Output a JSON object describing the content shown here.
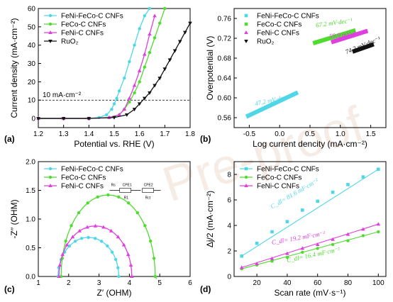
{
  "colors": {
    "cyan": "#4fd7e8",
    "green": "#4fdc2f",
    "magenta": "#df3fdc",
    "black": "#111111"
  },
  "watermark": "Pre-proof",
  "chart_data": [
    {
      "panel": "(a)",
      "type": "line",
      "xlabel": "Potential vs. RHE (V)",
      "ylabel": "Current density (mA·cm⁻²)",
      "xlim": [
        1.2,
        1.8
      ],
      "ylim": [
        -5,
        60
      ],
      "xticks": [
        "1.2",
        "1.3",
        "1.4",
        "1.5",
        "1.6",
        "1.7",
        "1.8"
      ],
      "yticks": [
        "0",
        "10",
        "20",
        "30",
        "40",
        "50",
        "60"
      ],
      "legend_position": "top-left",
      "annotations": [
        {
          "text": "10 mA·cm⁻²",
          "y": 10
        }
      ],
      "series": [
        {
          "name": "FeNi-FeCo-C CNFs",
          "color": "cyan",
          "marker": "circle",
          "x": [
            1.2,
            1.3,
            1.4,
            1.44,
            1.47,
            1.49,
            1.5,
            1.51,
            1.52,
            1.54,
            1.56,
            1.58,
            1.6,
            1.62,
            1.64
          ],
          "y": [
            0,
            0,
            0,
            0.5,
            2,
            5,
            8,
            11,
            15,
            22,
            31,
            40,
            49,
            56,
            60
          ]
        },
        {
          "name": "FeCo-C CNFs",
          "color": "green",
          "marker": "circle",
          "x": [
            1.2,
            1.3,
            1.4,
            1.48,
            1.52,
            1.54,
            1.56,
            1.58,
            1.6,
            1.62,
            1.64,
            1.66,
            1.68,
            1.7
          ],
          "y": [
            0,
            0,
            0,
            0.5,
            2,
            5,
            9,
            14,
            20,
            28,
            36,
            44,
            52,
            60
          ]
        },
        {
          "name": "FeNi-C CNFs",
          "color": "magenta",
          "marker": "triangle",
          "x": [
            1.2,
            1.3,
            1.4,
            1.48,
            1.52,
            1.54,
            1.56,
            1.58,
            1.6,
            1.62,
            1.64,
            1.66
          ],
          "y": [
            0,
            0,
            0,
            0.5,
            2,
            5,
            11,
            18,
            26,
            35,
            46,
            56
          ]
        },
        {
          "name": "RuO₂",
          "color": "black",
          "marker": "triangle-down",
          "x": [
            1.2,
            1.3,
            1.4,
            1.5,
            1.55,
            1.58,
            1.6,
            1.62,
            1.64,
            1.66,
            1.68,
            1.7,
            1.72,
            1.74,
            1.76,
            1.78,
            1.8
          ],
          "y": [
            0,
            0,
            0,
            0.5,
            2,
            5,
            8,
            11,
            14,
            18,
            22,
            27,
            32,
            37,
            42,
            47,
            52
          ]
        }
      ]
    },
    {
      "panel": "(b)",
      "type": "line",
      "xlabel": "Log current dencity (mA·cm⁻²)",
      "ylabel": "Overpotential (V)",
      "xlim": [
        -0.75,
        1.75
      ],
      "ylim": [
        0.54,
        0.78
      ],
      "xticks": [
        "-0.5",
        "0.0",
        "0.5",
        "1.0",
        "1.5"
      ],
      "yticks": [
        "0.56",
        "0.60",
        "0.64",
        "0.68",
        "0.72",
        "0.76"
      ],
      "legend_position": "top-left",
      "series": [
        {
          "name": "FeNi-FeCo-C CNFs",
          "color": "cyan",
          "slope_label": "47.2 mV·dec⁻¹",
          "x": [
            -0.55,
            0.3
          ],
          "y": [
            0.562,
            0.611
          ]
        },
        {
          "name": "FeCo-C CNFs",
          "color": "green",
          "slope_label": "67.2 mV·dec⁻¹",
          "x": [
            0.55,
            1.25
          ],
          "y": [
            0.71,
            0.736
          ]
        },
        {
          "name": "FeNi-C CNFs",
          "color": "magenta",
          "slope_label": "59.9 mV·dec⁻¹",
          "x": [
            0.85,
            1.45
          ],
          "y": [
            0.712,
            0.735
          ]
        },
        {
          "name": "RuO₂",
          "color": "black",
          "slope_label": "74.2 mV·dec⁻¹",
          "x": [
            1.2,
            1.55
          ],
          "y": [
            0.693,
            0.708
          ]
        }
      ]
    },
    {
      "panel": "(c)",
      "type": "scatter",
      "xlabel": "Z′ (OHM)",
      "ylabel": "-Z′′ (OHM)",
      "xlim": [
        1,
        6
      ],
      "ylim": [
        0,
        2
      ],
      "xticks": [
        "1",
        "2",
        "3",
        "4",
        "5",
        "6"
      ],
      "yticks": [
        "0.0",
        "0.5",
        "1.0",
        "1.5",
        "2.0"
      ],
      "legend_position": "top-left",
      "circuit_labels": [
        "Rs",
        "CPE1",
        "R1",
        "CPE2",
        "Rct"
      ],
      "series": [
        {
          "name": "FeNi-FeCo-C CNFs",
          "color": "cyan",
          "center": 2.65,
          "radius": 1.0,
          "height": 0.68
        },
        {
          "name": "FeCo-C CNFs",
          "color": "green",
          "center": 3.3,
          "radius": 1.55,
          "height": 1.42,
          "tail": true
        },
        {
          "name": "FeNi-C CNFs",
          "color": "magenta",
          "center": 2.88,
          "radius": 1.2,
          "height": 0.88
        }
      ]
    },
    {
      "panel": "(d)",
      "type": "scatter",
      "xlabel": "Scan rate (mV·s⁻¹)",
      "ylabel": "Δj/2 (mA·cm⁻²)",
      "xlim": [
        5,
        105
      ],
      "ylim": [
        0,
        9
      ],
      "xticks": [
        "20",
        "40",
        "60",
        "80",
        "100"
      ],
      "yticks": [
        "0",
        "2",
        "4",
        "6",
        "8"
      ],
      "legend_position": "top-left",
      "series": [
        {
          "name": "FeNi-FeCo-C CNFs",
          "color": "cyan",
          "marker": "square",
          "label": "C_dl= 81.6 mF·cm⁻²",
          "x": [
            10,
            20,
            30,
            40,
            50,
            60,
            70,
            80,
            90,
            100
          ],
          "y": [
            1.6,
            2.6,
            3.5,
            4.3,
            5.2,
            5.9,
            6.6,
            7.2,
            7.8,
            8.4
          ]
        },
        {
          "name": "FeCo-C CNFs",
          "color": "green",
          "marker": "circle",
          "label": "C_dl= 16.4 mF·cm⁻²",
          "x": [
            10,
            20,
            30,
            40,
            50,
            60,
            70,
            80,
            90,
            100
          ],
          "y": [
            0.6,
            0.9,
            1.2,
            1.5,
            1.9,
            2.2,
            2.5,
            2.8,
            3.2,
            3.5
          ]
        },
        {
          "name": "FeNi-C CNFs",
          "color": "magenta",
          "marker": "triangle",
          "label": "C_dl= 19.2 mF·cm⁻²",
          "x": [
            10,
            20,
            30,
            40,
            50,
            60,
            70,
            80,
            90,
            100
          ],
          "y": [
            0.7,
            1.0,
            1.4,
            1.8,
            2.2,
            2.5,
            2.9,
            3.3,
            3.7,
            4.1
          ]
        }
      ]
    }
  ]
}
